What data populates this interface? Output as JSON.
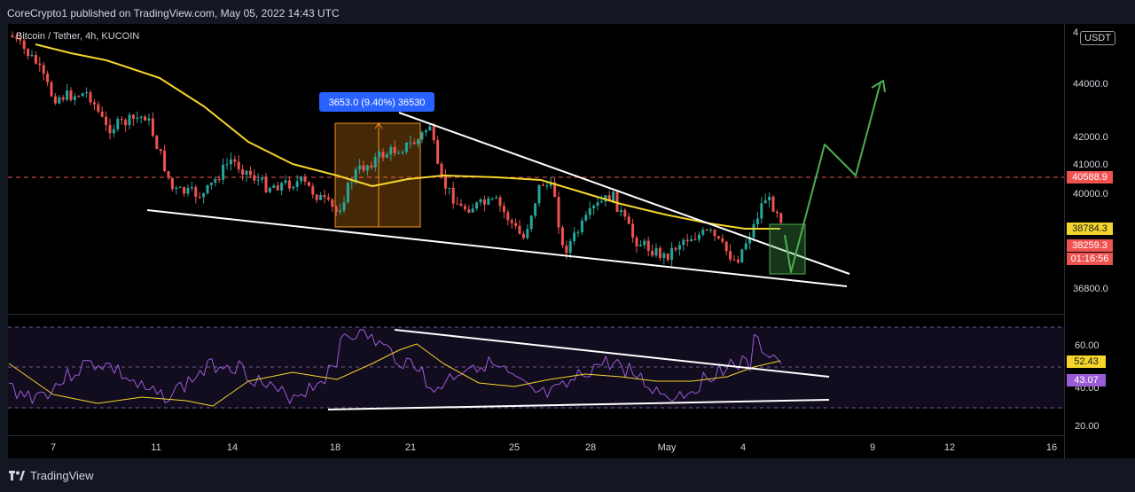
{
  "header": {
    "attribution": "CoreCrypto1 published on TradingView.com, May 05, 2022 14:43 UTC"
  },
  "chart_data": {
    "type": "line",
    "title": "Bitcoin / Tether, 4h, KUCOIN",
    "currency": "USDT",
    "price_axis": {
      "ticks": [
        "44000.0",
        "42000.0",
        "41000.0",
        "40000.0",
        "36800.0"
      ],
      "top_partial_tick": "4"
    },
    "time_axis": {
      "ticks": [
        "7",
        "11",
        "14",
        "18",
        "21",
        "25",
        "28",
        "May",
        "4",
        "9",
        "12",
        "16"
      ]
    },
    "measure_label": "3653.0 (9.40%) 36530",
    "price_tags": {
      "horizontal_level": "40588.9",
      "ma_value": "38784.3",
      "last_price": "38259.3",
      "countdown": "01:16:56"
    },
    "rsi": {
      "ticks": [
        "60.00",
        "40.00",
        "20.00"
      ],
      "ma_value": "52.43",
      "rsi_value": "43.07"
    },
    "colors": {
      "up": "#26a69a",
      "down": "#ef5350",
      "ma": "#f5d52b",
      "rsi": "#9c5bd6",
      "projection": "#4caf50",
      "level": "#ef5350",
      "measure_box": "#f7931a",
      "measure_label_bg": "#2962ff"
    },
    "grid": false,
    "legend": "none"
  },
  "footer": {
    "brand": "TradingView"
  }
}
